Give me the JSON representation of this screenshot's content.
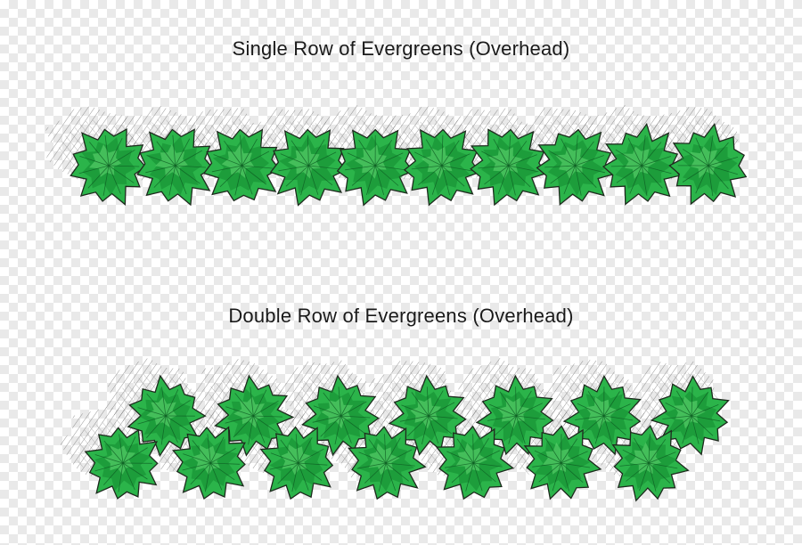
{
  "diagrams": {
    "single_row": {
      "caption": "Single Row of Evergreens (Overhead)",
      "rows": 1,
      "trees_per_row": 10
    },
    "double_row": {
      "caption": "Double Row of Evergreens (Overhead)",
      "rows": 2,
      "trees_per_row": 7
    }
  },
  "colors": {
    "foliage": "#2bb44a",
    "foliage_dark": "#138a30",
    "foliage_light": "#5fd36f",
    "outline": "#1e2a1e",
    "shadow": "#8a8a8a"
  }
}
